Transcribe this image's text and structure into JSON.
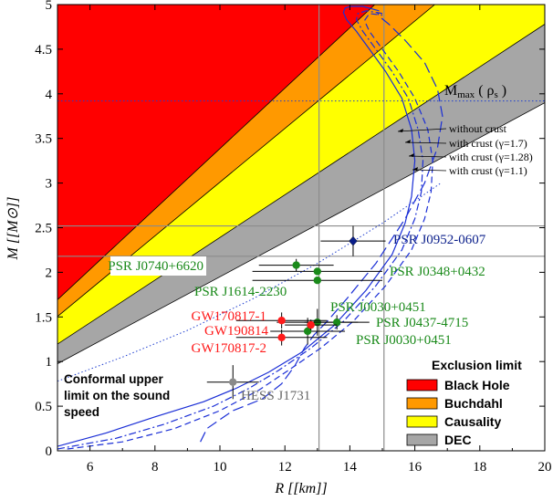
{
  "chart_data": {
    "type": "scatter",
    "xlabel": "R [[km]]",
    "ylabel": "M [[M⊙]]",
    "xlim": [
      5,
      20
    ],
    "ylim": [
      0,
      5
    ],
    "x_ticks": [
      6,
      8,
      10,
      12,
      14,
      16,
      18,
      20
    ],
    "y_ticks": [
      0,
      0.5,
      1,
      1.5,
      2,
      2.5,
      3,
      3.5,
      4,
      4.5,
      5
    ],
    "grid": false,
    "legend": {
      "title": "Exclusion limit",
      "position": "bottom-right",
      "entries": [
        {
          "label": "Black Hole",
          "color": "#ff0000",
          "slope": 0.3386
        },
        {
          "label": "Buchdahl",
          "color": "#ff9900",
          "slope": 0.301
        },
        {
          "label": "Causality",
          "color": "#ffff00",
          "slope": 0.239
        },
        {
          "label": "DEC",
          "color": "#a6a6a6",
          "slope": 0.195
        }
      ]
    },
    "mmax_line": {
      "label": "M",
      "sub": "max",
      "arg": "( ρ",
      "arg_sub": "s",
      "close": ")",
      "y": 3.92
    },
    "conformal_line": {
      "label": "Conformal upper limit on the sound speed",
      "label_lines": [
        "Conformal upper",
        "limit on the sound",
        "speed"
      ],
      "x": [
        5.0,
        7.0,
        9.0,
        11.0,
        13.0,
        15.0,
        16.8
      ],
      "y": [
        0.78,
        1.05,
        1.35,
        1.7,
        2.1,
        2.55,
        3.0
      ]
    },
    "curve_labels": [
      "without crust",
      "with crust (γ=1.7)",
      "with crust (γ=1.28)",
      "with crust (γ=1.1)"
    ],
    "reference_lines": {
      "vertical": [
        13.05,
        15.05
      ],
      "horizontal": [
        2.52,
        2.18
      ]
    },
    "series": [
      {
        "name": "without crust",
        "style": "solid",
        "x": [
          5.0,
          6.5,
          8.0,
          9.5,
          10.5,
          11.5,
          12.5,
          13.5,
          14.5,
          15.3,
          15.7,
          15.9,
          16.0,
          15.9,
          15.6,
          15.1,
          14.6,
          14.2,
          13.9,
          13.8,
          13.85,
          14.0,
          14.4,
          14.9
        ],
        "y": [
          0.05,
          0.2,
          0.38,
          0.55,
          0.7,
          0.88,
          1.1,
          1.4,
          1.8,
          2.2,
          2.55,
          2.85,
          3.25,
          3.6,
          3.95,
          4.25,
          4.5,
          4.7,
          4.83,
          4.91,
          4.96,
          4.98,
          4.98,
          4.93
        ]
      },
      {
        "name": "with crust (γ=1.7)",
        "style": "dashdot",
        "x": [
          5.0,
          6.8,
          8.3,
          9.8,
          10.9,
          11.8,
          12.8,
          13.8,
          14.8,
          15.6,
          16.0,
          16.2,
          16.25,
          16.1,
          15.8,
          15.3,
          14.8,
          14.4,
          14.2,
          14.25,
          14.5,
          15.0
        ],
        "y": [
          0.02,
          0.14,
          0.3,
          0.5,
          0.7,
          0.9,
          1.15,
          1.45,
          1.85,
          2.25,
          2.6,
          2.9,
          3.25,
          3.6,
          3.95,
          4.25,
          4.5,
          4.7,
          4.83,
          4.9,
          4.93,
          4.9
        ]
      },
      {
        "name": "with crust (γ=1.28)",
        "style": "dashed",
        "x": [
          5.3,
          7.0,
          8.6,
          10.0,
          11.2,
          12.1,
          13.1,
          14.1,
          15.1,
          15.9,
          16.3,
          16.5,
          16.55,
          16.4,
          16.0,
          15.5,
          15.0,
          14.6,
          14.45,
          14.6,
          15.0
        ],
        "y": [
          0.02,
          0.1,
          0.25,
          0.45,
          0.68,
          0.9,
          1.15,
          1.45,
          1.85,
          2.25,
          2.6,
          2.9,
          3.25,
          3.6,
          3.95,
          4.25,
          4.5,
          4.7,
          4.82,
          4.9,
          4.88
        ]
      },
      {
        "name": "with crust (γ=1.1)",
        "style": "longdash",
        "x": [
          9.4,
          9.6,
          10.4,
          11.3,
          11.9,
          12.3,
          12.6,
          12.9,
          13.3,
          13.9,
          14.8,
          15.7,
          16.3,
          16.7,
          16.85,
          16.7,
          16.3,
          15.7,
          15.2,
          14.9,
          14.85,
          15.0
        ],
        "y": [
          0.1,
          0.25,
          0.45,
          0.58,
          0.75,
          0.95,
          1.15,
          1.3,
          1.45,
          1.7,
          2.1,
          2.6,
          3.0,
          3.4,
          3.75,
          4.05,
          4.35,
          4.6,
          4.78,
          4.87,
          4.91,
          4.9
        ]
      }
    ],
    "data_points": [
      {
        "label": "PSR J0952-0607",
        "x": 14.1,
        "y": 2.35,
        "xerr": 1.0,
        "yerr": 0.17,
        "color": "#0a1e8a",
        "marker": "diamond",
        "label_color": "#0a1e8a"
      },
      {
        "label": "PSR J0740+6620",
        "x": 12.35,
        "y": 2.08,
        "xerr": 1.15,
        "yerr": 0.07,
        "color": "#1a8a1a",
        "marker": "circle",
        "label_color": "#1a8a1a"
      },
      {
        "label": "PSR J0348+0432",
        "x": 13.0,
        "y": 2.01,
        "xerr": 2.0,
        "yerr": 0.04,
        "color": "#1a8a1a",
        "marker": "circle",
        "label_color": "#1a8a1a"
      },
      {
        "label": "PSR J1614-2230",
        "x": 13.0,
        "y": 1.91,
        "xerr": 2.0,
        "yerr": 0.03,
        "color": "#1a8a1a",
        "marker": "circle",
        "label_color": "#1a8a1a"
      },
      {
        "label": "PSR J0030+0451",
        "x": 13.0,
        "y": 1.44,
        "xerr": 1.25,
        "yerr": 0.15,
        "color": "#1a8a1a",
        "marker": "circle",
        "label_color": "#1a8a1a"
      },
      {
        "label": "PSR J0437-4715",
        "x": 13.6,
        "y": 1.44,
        "xerr": 1.0,
        "yerr": 0.08,
        "color": "#1a8a1a",
        "marker": "circle",
        "label_color": "#1a8a1a"
      },
      {
        "label": "PSR J0030+0451",
        "x": 12.7,
        "y": 1.34,
        "xerr": 1.15,
        "yerr": 0.15,
        "color": "#1a8a1a",
        "marker": "circle",
        "label_color": "#1a8a1a"
      },
      {
        "label": "GW170817-1",
        "x": 11.9,
        "y": 1.46,
        "xerr": 1.4,
        "yerr": 0.09,
        "color": "#ff1a1a",
        "marker": "circle",
        "label_color": "#ff1a1a"
      },
      {
        "label": "GW190814",
        "x": 12.8,
        "y": 1.41,
        "xerr": 0.8,
        "yerr": 0.06,
        "color": "#ff1a1a",
        "marker": "circle",
        "label_color": "#ff1a1a"
      },
      {
        "label": "GW170817-2",
        "x": 11.9,
        "y": 1.27,
        "xerr": 1.4,
        "yerr": 0.09,
        "color": "#ff1a1a",
        "marker": "circle",
        "label_color": "#ff1a1a"
      },
      {
        "label": "HESS J1731",
        "x": 10.4,
        "y": 0.77,
        "xerr": 0.8,
        "yerr": 0.19,
        "color": "#8a8a8a",
        "marker": "circle",
        "label_color": "#666666"
      }
    ]
  }
}
